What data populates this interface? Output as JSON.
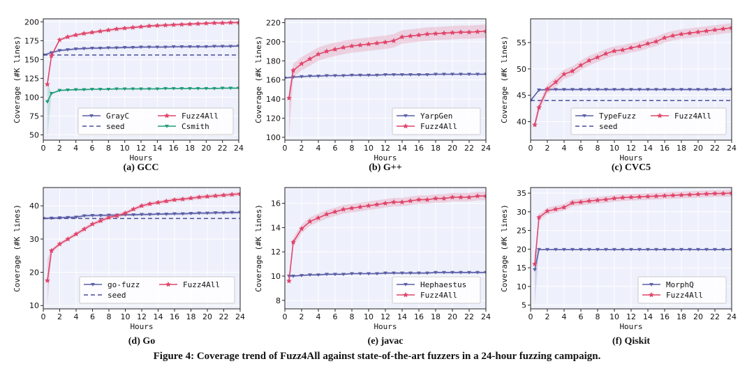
{
  "figure_caption": "Figure 4: Coverage trend of Fuzz4All against state-of-the-art fuzzers in a 24-hour fuzzing campaign.",
  "colors": {
    "blue": "#5b5ea6",
    "red": "#e0456a",
    "green": "#1e9c78",
    "seed": "#4a4d99",
    "panel_bg": "#eef0fb",
    "grid": "#ffffff"
  },
  "chart_data": [
    {
      "type": "line",
      "caption": "(a) GCC",
      "xlabel": "Hours",
      "ylabel": "Coverage (#K lines)",
      "xlim": [
        0,
        24
      ],
      "ylim": [
        43,
        204
      ],
      "xticks": [
        0,
        2,
        4,
        6,
        8,
        10,
        12,
        14,
        16,
        18,
        20,
        22,
        24
      ],
      "yticks": [
        50,
        75,
        100,
        125,
        150,
        175,
        200
      ],
      "legend_position": "lower-right",
      "legend_cols": 2,
      "legend": [
        "GrayC",
        "seed",
        "Fuzz4All",
        "Csmith"
      ],
      "series": [
        {
          "name": "GrayC",
          "color": "blue",
          "marker": "tri",
          "x": [
            0,
            1,
            2,
            3,
            4,
            5,
            6,
            7,
            8,
            9,
            10,
            11,
            12,
            13,
            14,
            15,
            16,
            17,
            18,
            19,
            20,
            21,
            22,
            23,
            24
          ],
          "y": [
            156,
            159,
            162,
            163,
            164,
            164.5,
            165,
            165,
            165.5,
            165.5,
            166,
            166,
            166.5,
            166.5,
            166.5,
            166.5,
            167,
            167,
            167,
            167,
            167,
            167.5,
            167.5,
            167.5,
            168
          ],
          "band": 1.5
        },
        {
          "name": "seed",
          "color": "seed",
          "dashed": true,
          "x": [
            0,
            24
          ],
          "y": [
            156,
            156
          ]
        },
        {
          "name": "Fuzz4All",
          "color": "red",
          "marker": "star",
          "x": [
            0.5,
            1,
            2,
            3,
            4,
            5,
            6,
            7,
            8,
            9,
            10,
            11,
            12,
            13,
            14,
            15,
            16,
            17,
            18,
            19,
            20,
            21,
            22,
            23,
            24
          ],
          "y": [
            117,
            155,
            176,
            180,
            182.5,
            184.5,
            186,
            187.5,
            189,
            190.5,
            191.5,
            192.5,
            193.5,
            194.5,
            195,
            195.5,
            196,
            196.5,
            197,
            197.5,
            198,
            198.5,
            198.5,
            199,
            199
          ],
          "band": 2
        },
        {
          "name": "Csmith",
          "color": "green",
          "marker": "tri",
          "x": [
            0.5,
            1,
            2,
            3,
            4,
            5,
            6,
            7,
            8,
            9,
            10,
            11,
            12,
            13,
            14,
            15,
            16,
            17,
            18,
            19,
            20,
            21,
            22,
            23,
            24
          ],
          "y": [
            94,
            105,
            109,
            109.5,
            110,
            110,
            110.5,
            110.5,
            110.5,
            111,
            111,
            111,
            111,
            111,
            111,
            111.5,
            111.5,
            111.5,
            111.5,
            111.5,
            111.5,
            111.5,
            112,
            112,
            112
          ],
          "band": 1,
          "band_start": [
            45,
            118
          ]
        }
      ]
    },
    {
      "type": "line",
      "caption": "(b) G++",
      "xlabel": "Hours",
      "ylabel": "Coverage (#K lines)",
      "xlim": [
        0,
        24
      ],
      "ylim": [
        97,
        224
      ],
      "xticks": [
        0,
        2,
        4,
        6,
        8,
        10,
        12,
        14,
        16,
        18,
        20,
        22,
        24
      ],
      "yticks": [
        100,
        120,
        140,
        160,
        180,
        200,
        220
      ],
      "legend_position": "lower-right",
      "legend_cols": 1,
      "legend": [
        "YarpGen",
        "Fuzz4All"
      ],
      "series": [
        {
          "name": "YarpGen",
          "color": "blue",
          "marker": "tri",
          "x": [
            0,
            1,
            2,
            3,
            4,
            5,
            6,
            7,
            8,
            9,
            10,
            11,
            12,
            13,
            14,
            15,
            16,
            17,
            18,
            19,
            20,
            21,
            22,
            23,
            24
          ],
          "y": [
            162,
            163,
            163.5,
            164,
            164,
            164.5,
            164.5,
            164.5,
            165,
            165,
            165,
            165,
            165.5,
            165.5,
            165.5,
            165.5,
            165.5,
            165.5,
            166,
            166,
            166,
            166,
            166,
            166,
            166
          ],
          "band": 1
        },
        {
          "name": "Fuzz4All",
          "color": "red",
          "marker": "star",
          "x": [
            0.5,
            1,
            2,
            3,
            4,
            5,
            6,
            7,
            8,
            9,
            10,
            11,
            12,
            13,
            14,
            15,
            16,
            17,
            18,
            19,
            20,
            21,
            22,
            23,
            24
          ],
          "y": [
            141,
            170,
            177,
            182,
            187,
            190,
            192,
            194,
            195.5,
            196.5,
            197.5,
            198.5,
            199.5,
            201,
            205,
            206,
            207,
            208,
            208.5,
            209,
            209.5,
            210,
            210,
            210.5,
            211
          ],
          "band": 7,
          "band_start": [
            100,
            150
          ]
        }
      ]
    },
    {
      "type": "line",
      "caption": "(c) CVC5",
      "xlabel": "Hours",
      "ylabel": "Coverage (#K lines)",
      "xlim": [
        0,
        24
      ],
      "ylim": [
        36.5,
        59.5
      ],
      "xticks": [
        0,
        2,
        4,
        6,
        8,
        10,
        12,
        14,
        16,
        18,
        20,
        22,
        24
      ],
      "yticks": [
        40,
        45,
        50,
        55
      ],
      "legend_position": "lower-right",
      "legend_cols": 2,
      "legend": [
        "TypeFuzz",
        "seed",
        "Fuzz4All"
      ],
      "series": [
        {
          "name": "TypeFuzz",
          "color": "blue",
          "marker": "tri",
          "x": [
            0,
            1,
            2,
            3,
            4,
            5,
            6,
            7,
            8,
            9,
            10,
            11,
            12,
            13,
            14,
            15,
            16,
            17,
            18,
            19,
            20,
            21,
            22,
            23,
            24
          ],
          "y": [
            44,
            46,
            46.1,
            46.1,
            46.1,
            46.1,
            46.1,
            46.1,
            46.1,
            46.1,
            46.1,
            46.1,
            46.1,
            46.1,
            46.1,
            46.1,
            46.1,
            46.1,
            46.1,
            46.1,
            46.1,
            46.1,
            46.1,
            46.1,
            46.1
          ],
          "band": 0.2
        },
        {
          "name": "seed",
          "color": "seed",
          "dashed": true,
          "x": [
            0,
            24
          ],
          "y": [
            44,
            44
          ]
        },
        {
          "name": "Fuzz4All",
          "color": "red",
          "marker": "star",
          "x": [
            0.5,
            1,
            2,
            3,
            4,
            5,
            6,
            7,
            8,
            9,
            10,
            11,
            12,
            13,
            14,
            15,
            16,
            17,
            18,
            19,
            20,
            21,
            22,
            23,
            24
          ],
          "y": [
            39.4,
            42.7,
            46.2,
            47.5,
            49,
            49.6,
            50.7,
            51.6,
            52.2,
            52.9,
            53.4,
            53.6,
            54,
            54.3,
            54.8,
            55.2,
            55.9,
            56.3,
            56.6,
            56.8,
            57,
            57.2,
            57.4,
            57.6,
            57.8
          ],
          "band": 0.9
        }
      ]
    },
    {
      "type": "line",
      "caption": "(d) Go",
      "xlabel": "Hours",
      "ylabel": "Coverage (#K lines)",
      "xlim": [
        0,
        24
      ],
      "ylim": [
        9,
        45.5
      ],
      "xticks": [
        0,
        2,
        4,
        6,
        8,
        10,
        12,
        14,
        16,
        18,
        20,
        22,
        24
      ],
      "yticks": [
        10,
        20,
        30,
        40
      ],
      "legend_position": "lower-right",
      "legend_cols": 2,
      "legend": [
        "go-fuzz",
        "seed",
        "Fuzz4All"
      ],
      "series": [
        {
          "name": "go-fuzz",
          "color": "blue",
          "marker": "tri",
          "x": [
            0,
            1,
            2,
            3,
            4,
            5,
            6,
            7,
            8,
            9,
            10,
            11,
            12,
            13,
            14,
            15,
            16,
            17,
            18,
            19,
            20,
            21,
            22,
            23,
            24
          ],
          "y": [
            36.2,
            36.3,
            36.4,
            36.5,
            36.6,
            37,
            37.1,
            37.1,
            37.2,
            37.2,
            37.3,
            37.3,
            37.4,
            37.4,
            37.5,
            37.5,
            37.6,
            37.6,
            37.7,
            37.8,
            37.8,
            37.9,
            37.9,
            38,
            38
          ],
          "band": 0.4
        },
        {
          "name": "seed",
          "color": "seed",
          "dashed": true,
          "x": [
            0,
            24
          ],
          "y": [
            36.2,
            36.2
          ]
        },
        {
          "name": "Fuzz4All",
          "color": "red",
          "marker": "star",
          "x": [
            0.5,
            1,
            2,
            3,
            4,
            5,
            6,
            7,
            8,
            9,
            10,
            11,
            12,
            13,
            14,
            15,
            16,
            17,
            18,
            19,
            20,
            21,
            22,
            23,
            24
          ],
          "y": [
            17.5,
            26.5,
            28.5,
            30,
            31.5,
            33,
            34.5,
            35.5,
            36.5,
            37,
            37.8,
            39,
            40,
            40.6,
            41,
            41.4,
            41.8,
            42,
            42.3,
            42.6,
            42.8,
            43,
            43.2,
            43.4,
            43.6
          ],
          "band": 0.6,
          "band_start": [
            10,
            24
          ]
        }
      ]
    },
    {
      "type": "line",
      "caption": "(e) javac",
      "xlabel": "Hours",
      "ylabel": "Coverage (#K lines)",
      "xlim": [
        0,
        24
      ],
      "ylim": [
        7.3,
        17.3
      ],
      "xticks": [
        0,
        2,
        4,
        6,
        8,
        10,
        12,
        14,
        16,
        18,
        20,
        22,
        24
      ],
      "yticks": [
        8,
        10,
        12,
        14,
        16
      ],
      "legend_position": "lower-right",
      "legend_cols": 1,
      "legend": [
        "Hephaestus",
        "Fuzz4All"
      ],
      "series": [
        {
          "name": "Hephaestus",
          "color": "blue",
          "marker": "tri",
          "x": [
            0.5,
            1,
            2,
            3,
            4,
            5,
            6,
            7,
            8,
            9,
            10,
            11,
            12,
            13,
            14,
            15,
            16,
            17,
            18,
            19,
            20,
            21,
            22,
            23,
            24
          ],
          "y": [
            10,
            10,
            10.05,
            10.1,
            10.1,
            10.15,
            10.15,
            10.15,
            10.2,
            10.2,
            10.2,
            10.2,
            10.25,
            10.25,
            10.25,
            10.25,
            10.25,
            10.25,
            10.3,
            10.3,
            10.3,
            10.3,
            10.3,
            10.3,
            10.3
          ],
          "band": 0.08
        },
        {
          "name": "Fuzz4All",
          "color": "red",
          "marker": "star",
          "x": [
            0.5,
            1,
            2,
            3,
            4,
            5,
            6,
            7,
            8,
            9,
            10,
            11,
            12,
            13,
            14,
            15,
            16,
            17,
            18,
            19,
            20,
            21,
            22,
            23,
            24
          ],
          "y": [
            9.6,
            12.8,
            13.9,
            14.5,
            14.8,
            15.1,
            15.3,
            15.5,
            15.6,
            15.7,
            15.8,
            15.9,
            16,
            16.1,
            16.1,
            16.2,
            16.3,
            16.3,
            16.4,
            16.4,
            16.5,
            16.5,
            16.5,
            16.6,
            16.6
          ],
          "band": 0.35
        }
      ]
    },
    {
      "type": "line",
      "caption": "(f) Qiskit",
      "xlabel": "Hours",
      "ylabel": "Coverage (#K lines)",
      "xlim": [
        0,
        24
      ],
      "ylim": [
        4,
        36.5
      ],
      "xticks": [
        0,
        2,
        4,
        6,
        8,
        10,
        12,
        14,
        16,
        18,
        20,
        22,
        24
      ],
      "yticks": [
        5,
        10,
        15,
        20,
        25,
        30,
        35
      ],
      "legend_position": "lower-right",
      "legend_cols": 1,
      "legend": [
        "MorphQ",
        "Fuzz4All"
      ],
      "series": [
        {
          "name": "MorphQ",
          "color": "blue",
          "marker": "tri",
          "x": [
            0.5,
            1,
            2,
            3,
            4,
            5,
            6,
            7,
            8,
            9,
            10,
            11,
            12,
            13,
            14,
            15,
            16,
            17,
            18,
            19,
            20,
            21,
            22,
            23,
            24
          ],
          "y": [
            14.5,
            19.9,
            19.9,
            19.9,
            19.9,
            19.9,
            19.9,
            19.9,
            19.9,
            19.9,
            19.9,
            19.9,
            19.9,
            19.9,
            19.9,
            19.9,
            19.9,
            19.9,
            19.9,
            19.9,
            19.9,
            19.9,
            19.9,
            19.9,
            19.9
          ],
          "band": 0.15,
          "band_start": [
            5,
            20
          ]
        },
        {
          "name": "Fuzz4All",
          "color": "red",
          "marker": "star",
          "x": [
            0.5,
            1,
            2,
            3,
            4,
            5,
            6,
            7,
            8,
            9,
            10,
            11,
            12,
            13,
            14,
            15,
            16,
            17,
            18,
            19,
            20,
            21,
            22,
            23,
            24
          ],
          "y": [
            16,
            28.5,
            30.2,
            30.7,
            31.2,
            32.4,
            32.6,
            32.9,
            33.1,
            33.3,
            33.6,
            33.8,
            33.9,
            34,
            34.1,
            34.2,
            34.3,
            34.4,
            34.5,
            34.6,
            34.7,
            34.8,
            34.9,
            34.9,
            35
          ],
          "band": 0.9
        }
      ]
    }
  ]
}
